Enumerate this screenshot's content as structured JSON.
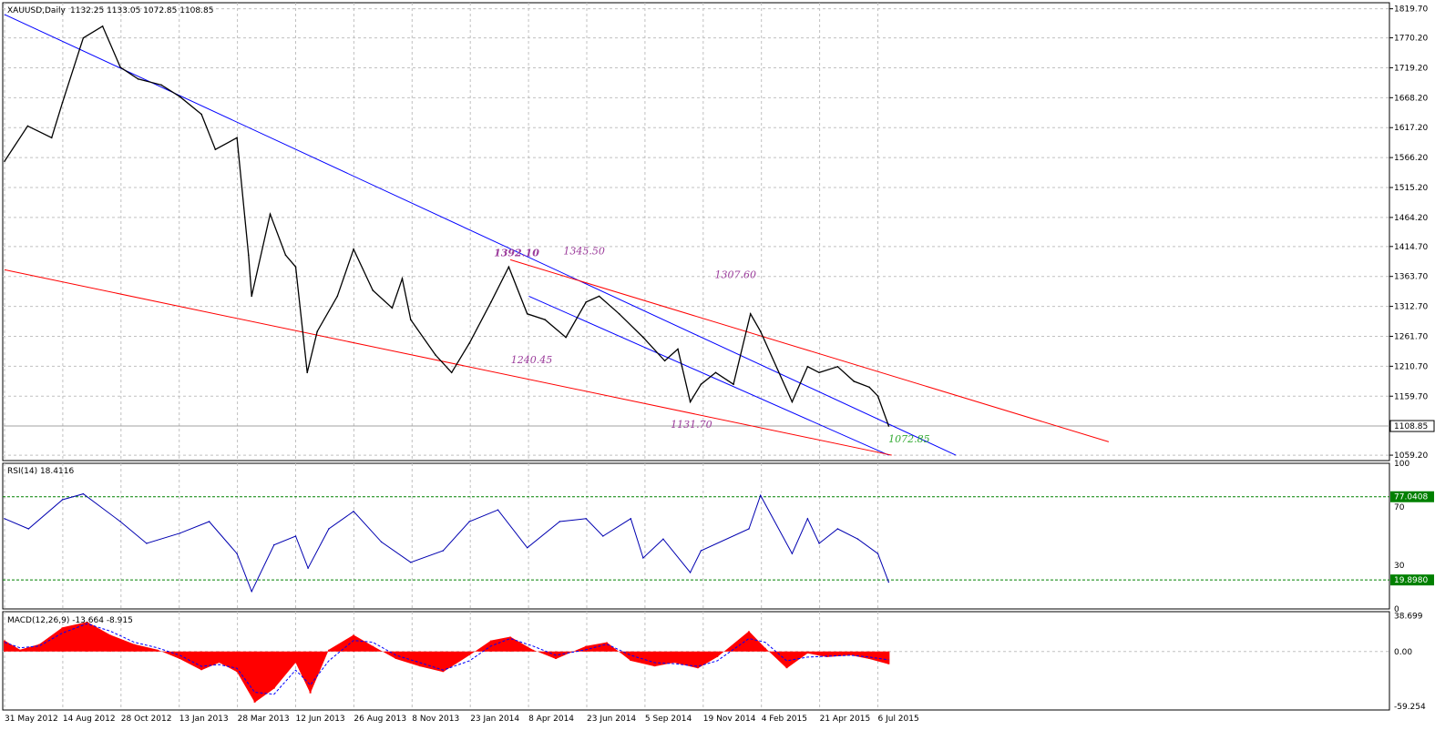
{
  "app": {
    "main_title": "XAUUSD,Daily",
    "ohlc_text": "1132.25 1133.05 1072.85 1108.85",
    "rsi_title": "RSI(14) 18.4116",
    "macd_title": "MACD(12,26,9) -13.664 -8.915"
  },
  "colors": {
    "price": "#000000",
    "channel_blue": "#0000ff",
    "channel_red": "#ff0000",
    "rsi_line": "#0000b0",
    "level_green": "#008000",
    "macd_hist": "#ff0000",
    "macd_signal": "#0000ff",
    "annot_purple": "#9b3c9b",
    "annot_green": "#33aa33",
    "grid": "#c0c0c0"
  },
  "chart_data": [
    {
      "type": "line",
      "panel": "price",
      "title": "XAUUSD,Daily",
      "ohlc_last": {
        "open": 1132.25,
        "high": 1133.05,
        "low": 1072.85,
        "close": 1108.85
      },
      "y_ticks": [
        "1819.70",
        "1770.20",
        "1719.20",
        "1668.20",
        "1617.20",
        "1566.20",
        "1515.20",
        "1464.20",
        "1414.70",
        "1363.70",
        "1312.70",
        "1261.70",
        "1210.70",
        "1159.70",
        "1059.20"
      ],
      "ylim": [
        1050,
        1830
      ],
      "last_price_label": "1108.85",
      "x_ticks": [
        "31 May 2012",
        "14 Aug 2012",
        "28 Oct 2012",
        "13 Jan 2013",
        "28 Mar 2013",
        "12 Jun 2013",
        "26 Aug 2013",
        "8 Nov 2013",
        "23 Jan 2014",
        "8 Apr 2014",
        "23 Jun 2014",
        "5 Sep 2014",
        "19 Nov 2014",
        "4 Feb 2015",
        "21 Apr 2015",
        "6 Jul 2015"
      ],
      "series": [
        {
          "style": "close",
          "x": [
            "2012-05-31",
            "2012-06-30",
            "2012-07-31",
            "2012-08-14",
            "2012-09-10",
            "2012-10-05",
            "2012-10-28",
            "2012-11-20",
            "2012-12-20",
            "2013-01-13",
            "2013-02-10",
            "2013-02-28",
            "2013-03-28",
            "2013-04-12",
            "2013-04-16",
            "2013-05-10",
            "2013-05-30",
            "2013-06-12",
            "2013-06-27",
            "2013-07-10",
            "2013-08-05",
            "2013-08-26",
            "2013-09-20",
            "2013-10-15",
            "2013-10-28",
            "2013-11-08",
            "2013-12-10",
            "2013-12-31",
            "2014-01-23",
            "2014-02-20",
            "2014-03-15",
            "2014-04-08",
            "2014-05-01",
            "2014-05-28",
            "2014-06-23",
            "2014-07-10",
            "2014-08-05",
            "2014-09-05",
            "2014-10-03",
            "2014-10-20",
            "2014-11-05",
            "2014-11-19",
            "2014-12-08",
            "2014-12-31",
            "2015-01-22",
            "2015-02-04",
            "2015-03-17",
            "2015-04-06",
            "2015-04-21",
            "2015-05-15",
            "2015-06-05",
            "2015-06-25",
            "2015-07-06",
            "2015-07-20"
          ],
          "y": [
            1560,
            1620,
            1600,
            1660,
            1770,
            1790,
            1720,
            1700,
            1690,
            1670,
            1640,
            1580,
            1600,
            1400,
            1330,
            1470,
            1400,
            1380,
            1200,
            1270,
            1330,
            1410,
            1340,
            1310,
            1360,
            1290,
            1230,
            1200,
            1250,
            1320,
            1380,
            1300,
            1290,
            1260,
            1320,
            1330,
            1300,
            1260,
            1220,
            1240,
            1150,
            1180,
            1200,
            1180,
            1300,
            1270,
            1150,
            1210,
            1200,
            1210,
            1185,
            1175,
            1160,
            1108.85
          ]
        }
      ],
      "trendlines": [
        {
          "name": "",
          "color": "#0000ff",
          "from": [
            "2012-05-31",
            1810
          ],
          "to": [
            "2015-10-15",
            1059.2
          ]
        },
        {
          "name": "",
          "color": "#0000ff",
          "from": [
            "2014-04-10",
            1330
          ],
          "to": [
            "2015-07-20",
            1059.2
          ]
        },
        {
          "name": "",
          "color": "#ff0000",
          "from": [
            "2012-05-31",
            1375
          ],
          "to": [
            "2015-07-24",
            1059.2
          ]
        },
        {
          "name": "",
          "color": "#ff0000",
          "from": [
            "2014-03-17",
            1392.1
          ],
          "to": [
            "2016-04-30",
            1082
          ]
        }
      ],
      "annotations": [
        {
          "text": "1392.10",
          "x": "2014-03-17",
          "y": 1392.1,
          "bold": true,
          "color": "#9b3c9b"
        },
        {
          "text": "1345.50",
          "x": "2014-06-15",
          "y": 1395,
          "bold": false,
          "color": "#9b3c9b"
        },
        {
          "text": "1307.60",
          "x": "2014-12-28",
          "y": 1355,
          "bold": false,
          "color": "#9b3c9b"
        },
        {
          "text": "1240.45",
          "x": "2014-04-08",
          "y": 1210,
          "bold": false,
          "color": "#9b3c9b"
        },
        {
          "text": "1131.70",
          "x": "2014-11-01",
          "y": 1100,
          "bold": false,
          "color": "#9b3c9b"
        },
        {
          "text": "1072.85",
          "x": "2015-08-10",
          "y": 1075,
          "bold": false,
          "color": "#33aa33"
        }
      ]
    },
    {
      "type": "line",
      "panel": "rsi",
      "title": "RSI(14) 18.4116",
      "ylim": [
        0,
        100
      ],
      "y_ticks": [
        "100",
        "70",
        "30",
        "0"
      ],
      "levels": [
        {
          "label": "77.0408",
          "value": 77.04
        },
        {
          "label": "19.8980",
          "value": 19.9
        }
      ],
      "series": [
        {
          "x": [
            "2012-05-31",
            "2012-07-01",
            "2012-08-14",
            "2012-09-10",
            "2012-10-28",
            "2012-12-01",
            "2013-01-13",
            "2013-02-20",
            "2013-03-28",
            "2013-04-16",
            "2013-05-15",
            "2013-06-12",
            "2013-06-28",
            "2013-07-25",
            "2013-08-26",
            "2013-10-01",
            "2013-11-08",
            "2013-12-20",
            "2014-01-23",
            "2014-03-01",
            "2014-04-08",
            "2014-05-20",
            "2014-06-23",
            "2014-07-15",
            "2014-08-20",
            "2014-09-05",
            "2014-10-01",
            "2014-11-05",
            "2014-11-19",
            "2015-01-20",
            "2015-02-04",
            "2015-03-17",
            "2015-04-06",
            "2015-04-21",
            "2015-05-15",
            "2015-06-10",
            "2015-07-06",
            "2015-07-20"
          ],
          "y": [
            62,
            55,
            75,
            79,
            60,
            45,
            52,
            60,
            38,
            12,
            44,
            50,
            28,
            55,
            67,
            46,
            32,
            40,
            60,
            68,
            42,
            60,
            62,
            50,
            62,
            35,
            48,
            25,
            40,
            55,
            78,
            38,
            62,
            45,
            55,
            48,
            38,
            18.4
          ]
        }
      ]
    },
    {
      "type": "bar",
      "panel": "macd",
      "title": "MACD(12,26,9) -13.664 -8.915",
      "ylim": [
        -63,
        43
      ],
      "y_ticks": [
        "38.699",
        "0.00",
        "-59.254"
      ],
      "series": [
        {
          "name": "",
          "style": "histogram",
          "x": [
            "2012-05-31",
            "2012-06-20",
            "2012-07-15",
            "2012-08-14",
            "2012-09-15",
            "2012-10-15",
            "2012-11-15",
            "2012-12-15",
            "2013-01-13",
            "2013-02-10",
            "2013-03-05",
            "2013-03-28",
            "2013-04-20",
            "2013-05-15",
            "2013-06-12",
            "2013-07-01",
            "2013-07-25",
            "2013-08-26",
            "2013-09-20",
            "2013-10-20",
            "2013-11-20",
            "2013-12-20",
            "2014-01-23",
            "2014-02-20",
            "2014-03-17",
            "2014-04-15",
            "2014-05-15",
            "2014-06-23",
            "2014-07-20",
            "2014-08-20",
            "2014-09-20",
            "2014-10-15",
            "2014-11-15",
            "2014-12-10",
            "2015-01-20",
            "2015-02-10",
            "2015-03-10",
            "2015-04-06",
            "2015-05-01",
            "2015-06-01",
            "2015-06-25",
            "2015-07-20"
          ],
          "y": [
            12,
            2,
            8,
            26,
            32,
            18,
            8,
            2,
            -8,
            -20,
            -12,
            -22,
            -55,
            -40,
            -12,
            -45,
            2,
            18,
            6,
            -8,
            -16,
            -22,
            -4,
            12,
            16,
            2,
            -8,
            6,
            10,
            -10,
            -16,
            -12,
            -18,
            -6,
            22,
            4,
            -18,
            -2,
            -6,
            -4,
            -8,
            -13.664
          ]
        },
        {
          "name": "",
          "style": "signal",
          "x": [
            "2012-05-31",
            "2012-06-20",
            "2012-07-15",
            "2012-08-14",
            "2012-09-15",
            "2012-10-15",
            "2012-11-15",
            "2012-12-15",
            "2013-01-13",
            "2013-02-10",
            "2013-03-05",
            "2013-03-28",
            "2013-04-20",
            "2013-05-15",
            "2013-06-12",
            "2013-07-01",
            "2013-07-25",
            "2013-08-26",
            "2013-09-20",
            "2013-10-20",
            "2013-11-20",
            "2013-12-20",
            "2014-01-23",
            "2014-02-20",
            "2014-03-17",
            "2014-04-15",
            "2014-05-15",
            "2014-06-23",
            "2014-07-20",
            "2014-08-20",
            "2014-09-20",
            "2014-10-15",
            "2014-11-15",
            "2014-12-10",
            "2015-01-20",
            "2015-02-10",
            "2015-03-10",
            "2015-04-06",
            "2015-05-01",
            "2015-06-01",
            "2015-06-25",
            "2015-07-20"
          ],
          "y": [
            10,
            4,
            6,
            20,
            30,
            22,
            10,
            4,
            -4,
            -16,
            -14,
            -18,
            -44,
            -46,
            -20,
            -36,
            -10,
            12,
            10,
            -4,
            -12,
            -20,
            -10,
            6,
            14,
            6,
            -4,
            2,
            8,
            -4,
            -12,
            -13,
            -16,
            -10,
            14,
            10,
            -10,
            -6,
            -5,
            -4,
            -6,
            -8.915
          ]
        }
      ]
    }
  ]
}
